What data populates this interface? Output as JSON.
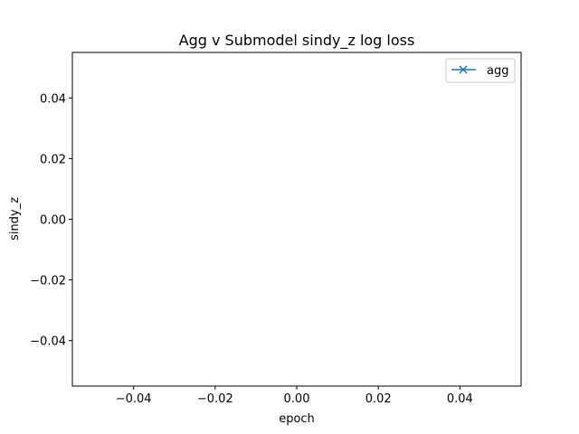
{
  "chart_data": {
    "type": "line",
    "title": "Agg v Submodel sindy_z log loss",
    "xlabel": "epoch",
    "ylabel": "sindy_z",
    "xlim": [
      -0.055,
      0.055
    ],
    "ylim": [
      -0.055,
      0.055
    ],
    "xticks": [
      -0.04,
      -0.02,
      0.0,
      0.02,
      0.04
    ],
    "xtick_labels": [
      "−0.04",
      "−0.02",
      "0.00",
      "0.02",
      "0.04"
    ],
    "yticks": [
      -0.04,
      -0.02,
      0.0,
      0.02,
      0.04
    ],
    "ytick_labels": [
      "−0.04",
      "−0.02",
      "0.00",
      "0.02",
      "0.04"
    ],
    "grid": false,
    "legend_position": "top-right",
    "series": [
      {
        "name": "agg",
        "color": "#1f77b4",
        "marker": "x",
        "x": [],
        "y": []
      }
    ]
  }
}
